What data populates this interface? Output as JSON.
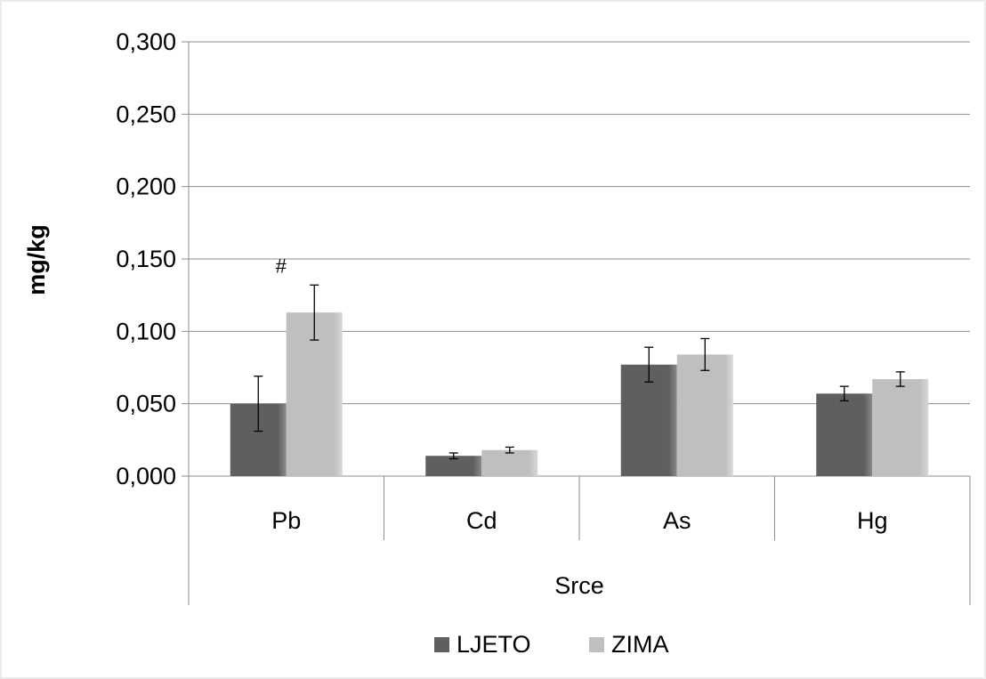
{
  "chart_data": {
    "type": "bar",
    "title": "",
    "xlabel": "Srce",
    "ylabel": "mg/kg",
    "categories": [
      "Pb",
      "Cd",
      "As",
      "Hg"
    ],
    "ylim": [
      0,
      0.3
    ],
    "yticks": [
      "0,000",
      "0,050",
      "0,100",
      "0,150",
      "0,200",
      "0,250",
      "0,300"
    ],
    "ytick_values": [
      0,
      0.05,
      0.1,
      0.15,
      0.2,
      0.25,
      0.3
    ],
    "grid": true,
    "legend_position": "bottom",
    "series": [
      {
        "name": "LJETO",
        "color": "#5f5f5f",
        "values": [
          0.05,
          0.014,
          0.077,
          0.057
        ],
        "error": [
          0.019,
          0.002,
          0.012,
          0.005
        ]
      },
      {
        "name": "ZIMA",
        "color": "#bfbfbf",
        "values": [
          0.113,
          0.018,
          0.084,
          0.067
        ],
        "error": [
          0.019,
          0.002,
          0.011,
          0.005
        ]
      }
    ],
    "annotations": [
      {
        "text": "#",
        "category": "Pb",
        "series": "ZIMA"
      }
    ]
  }
}
